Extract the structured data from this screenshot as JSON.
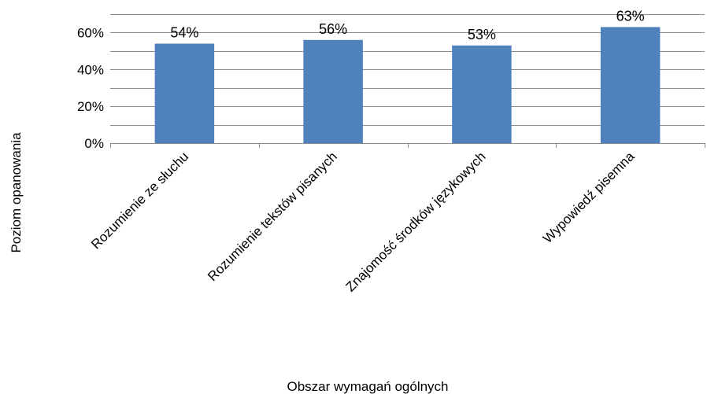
{
  "chart_data": {
    "type": "bar",
    "categories": [
      "Rozumienie ze słuchu",
      "Rozumienie tekstów pisanych",
      "Znajomość środków językowych",
      "Wypowiedź pisemna"
    ],
    "values": [
      54,
      56,
      53,
      63
    ],
    "data_labels": [
      "54%",
      "56%",
      "53%",
      "63%"
    ],
    "xlabel": "Obszar wymagań ogólnych",
    "ylabel": "Poziom opanowania",
    "ylim": [
      0,
      70
    ],
    "yticks": [
      0,
      20,
      40,
      60
    ],
    "ytick_labels": [
      "0%",
      "20%",
      "40%",
      "60%"
    ],
    "grid": true,
    "bar_color": "#4f81bd"
  }
}
